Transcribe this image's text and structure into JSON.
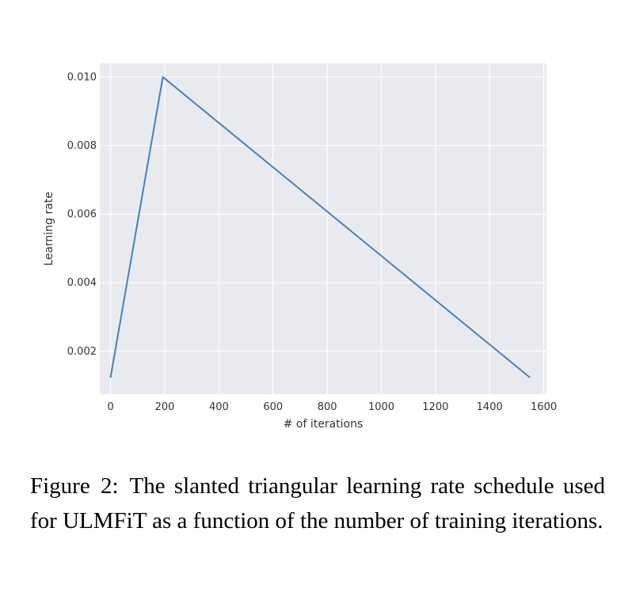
{
  "chart_data": {
    "type": "line",
    "x": [
      0,
      193,
      1547
    ],
    "y": [
      0.00125,
      0.01,
      0.00125
    ],
    "xlabel": "# of iterations",
    "ylabel": "Learning rate",
    "xlim": [
      -40,
      1610
    ],
    "ylim": [
      0.00075,
      0.0104
    ],
    "xticks": [
      0,
      200,
      400,
      600,
      800,
      1000,
      1200,
      1400,
      1600
    ],
    "xtick_labels": [
      "0",
      "200",
      "400",
      "600",
      "800",
      "1000",
      "1200",
      "1400",
      "1600"
    ],
    "yticks": [
      0.002,
      0.004,
      0.006,
      0.008,
      0.01
    ],
    "ytick_labels": [
      "0.002",
      "0.004",
      "0.006",
      "0.008",
      "0.010"
    ],
    "grid": true,
    "style": {
      "background": "#e9eaf0",
      "grid_color": "#ffffff",
      "line_color": "#4a7fb6"
    }
  },
  "caption": {
    "label": "Figure 2:",
    "text": "The slanted triangular learning rate schedule used for ULMFiT as a function of the number of training iterations."
  }
}
